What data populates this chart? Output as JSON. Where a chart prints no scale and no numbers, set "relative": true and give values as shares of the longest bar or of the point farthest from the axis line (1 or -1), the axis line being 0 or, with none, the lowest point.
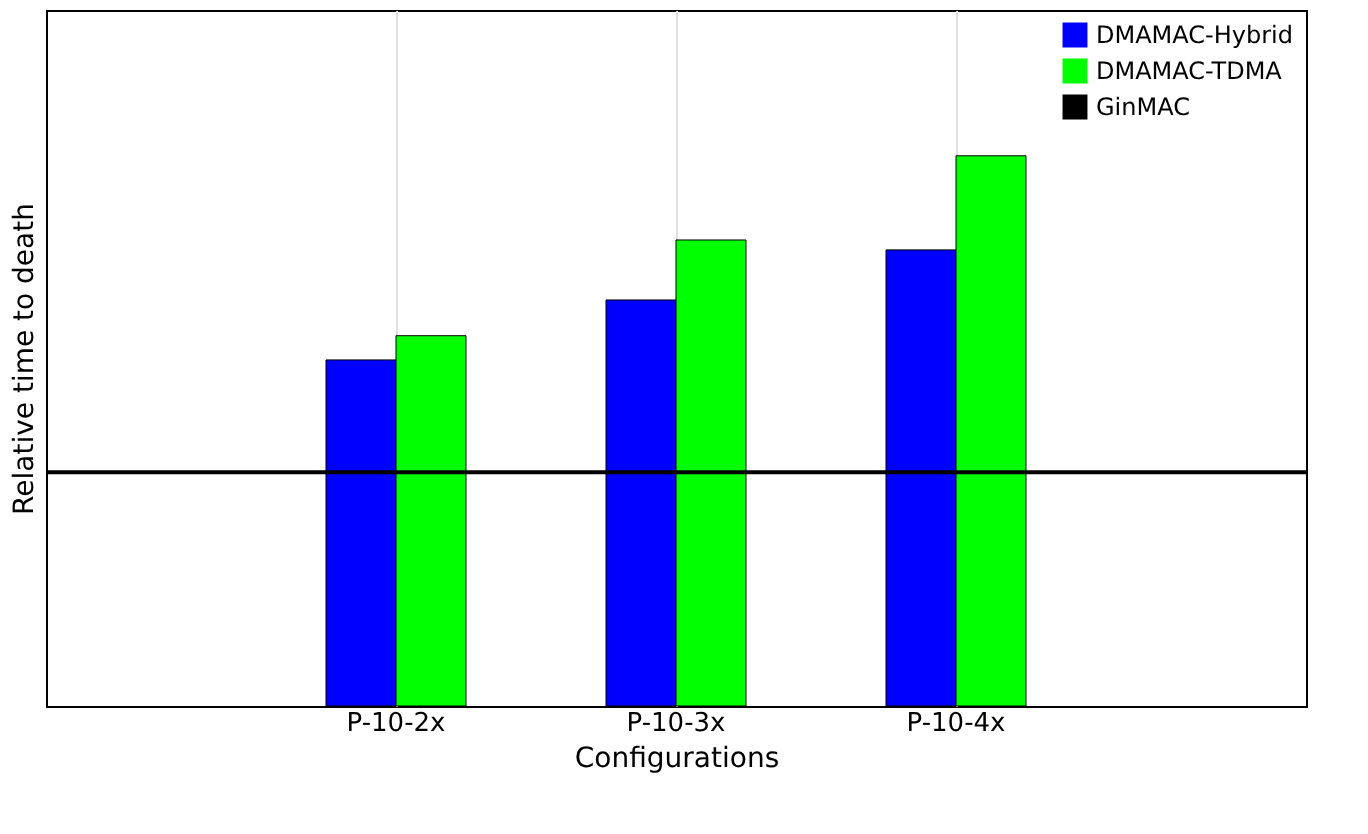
{
  "chart_data": {
    "type": "bar",
    "relative": true,
    "xlabel": "Configurations",
    "ylabel": "Relative time to death",
    "categories": [
      "P-10-2x",
      "P-10-3x",
      "P-10-4x"
    ],
    "series": [
      {
        "name": "DMAMAC-Hybrid",
        "color": "#0000ff",
        "values": [
          0.629,
          0.738,
          0.829
        ]
      },
      {
        "name": "DMAMAC-TDMA",
        "color": "#00ff00",
        "values": [
          0.673,
          0.847,
          1
        ]
      }
    ],
    "ref_lines": [
      {
        "axis": "y",
        "value": 0.425,
        "label": "GinMAC",
        "color": "#000000",
        "line_style": "solid"
      }
    ],
    "grid": "x",
    "legend": "top right"
  }
}
